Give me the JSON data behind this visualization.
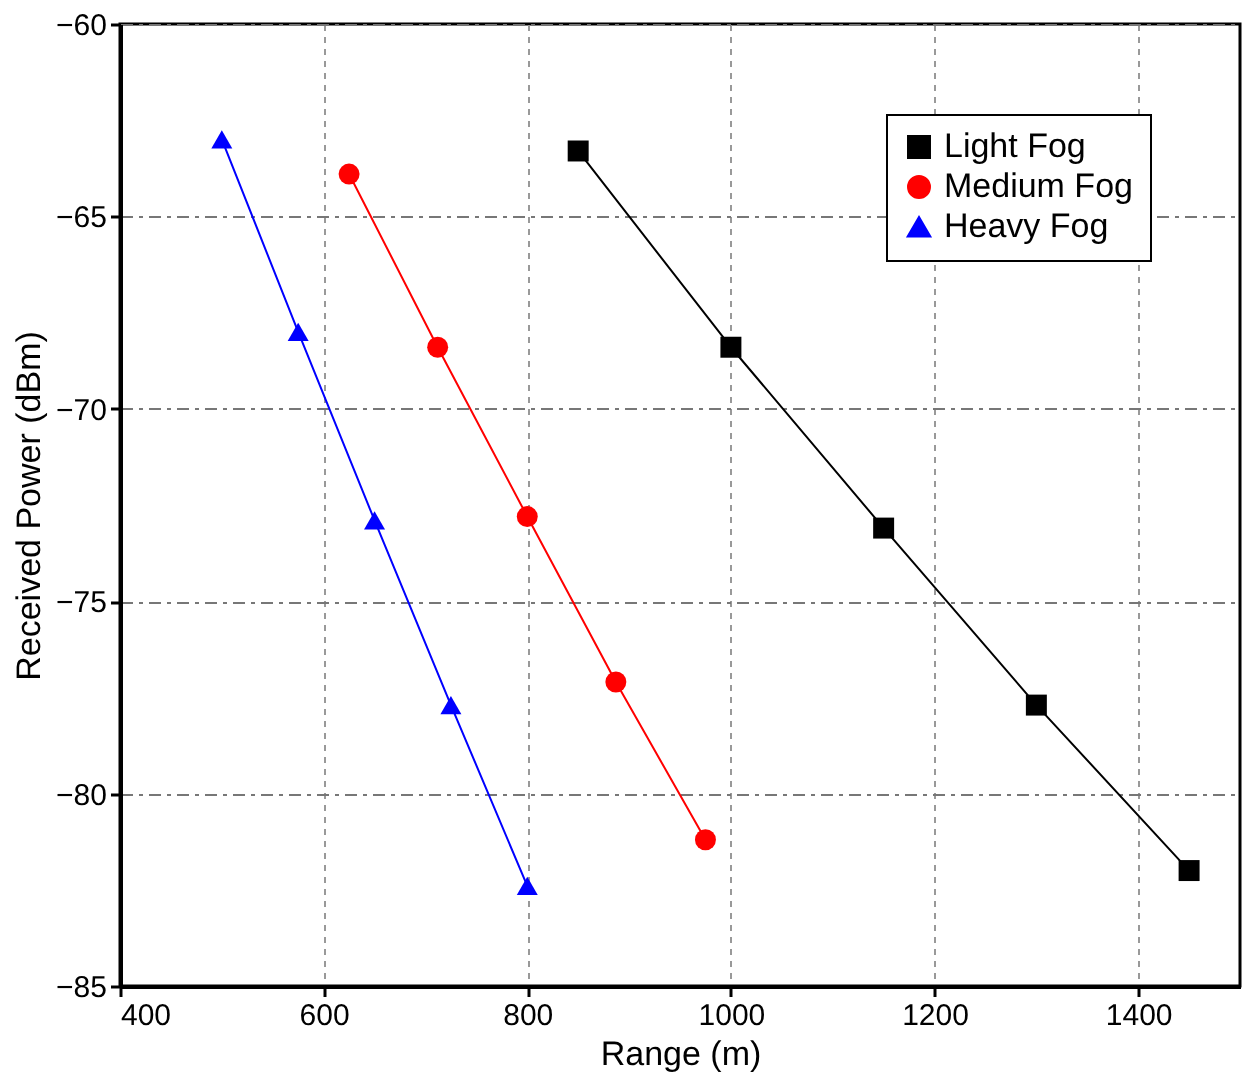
{
  "chart_data": {
    "type": "line",
    "xlabel": "Range (m)",
    "ylabel": "Received Power (dBm)",
    "xlim": [
      400,
      1500
    ],
    "xticks": [
      400,
      600,
      800,
      1000,
      1200,
      1400
    ],
    "ylim": [
      -85,
      -60
    ],
    "yticks": [
      -85,
      -80,
      -75,
      -70,
      -65,
      -60
    ],
    "grid": true,
    "legend": "top right",
    "line_style": "solid",
    "series": [
      {
        "name": "Light Fog",
        "color": "#000000",
        "marker": "square",
        "x": [
          850,
          1000,
          1150,
          1300,
          1450
        ],
        "values": [
          -63.3,
          -68.4,
          -73.1,
          -77.7,
          -82.0
        ]
      },
      {
        "name": "Medium Fog",
        "color": "#ff0000",
        "marker": "circle",
        "x": [
          625,
          712,
          800,
          887,
          975
        ],
        "values": [
          -63.9,
          -68.4,
          -72.8,
          -77.1,
          -81.2
        ]
      },
      {
        "name": "Heavy Fog",
        "color": "#0000ff",
        "marker": "triangle",
        "x": [
          500,
          575,
          650,
          725,
          800
        ],
        "values": [
          -63.0,
          -68.0,
          -72.9,
          -77.7,
          -82.4
        ]
      }
    ]
  }
}
